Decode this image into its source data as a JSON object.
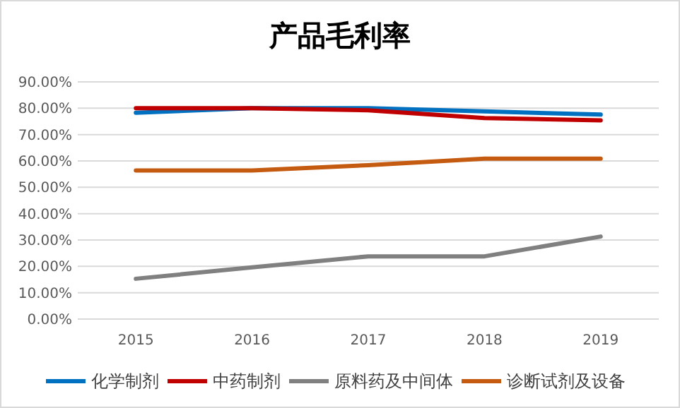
{
  "chart_data": {
    "type": "line",
    "title": "产品毛利率",
    "categories": [
      "2015",
      "2016",
      "2017",
      "2018",
      "2019"
    ],
    "series": [
      {
        "name": "化学制剂",
        "color": "#0070c0",
        "values": [
          78.3,
          80,
          80,
          78.8,
          77.6
        ]
      },
      {
        "name": "中药制剂",
        "color": "#c00000",
        "values": [
          80,
          80,
          79.2,
          76.3,
          75.4
        ]
      },
      {
        "name": "原料药及中间体",
        "color": "#808080",
        "values": [
          15.3,
          19.6,
          23.8,
          23.8,
          31.3
        ]
      },
      {
        "name": "诊断试剂及设备",
        "color": "#c55a11",
        "values": [
          56.4,
          56.4,
          58.4,
          60.9,
          60.9
        ]
      }
    ],
    "ylim": [
      0,
      90
    ],
    "yticks": [
      {
        "value": 0,
        "label": "0.00%"
      },
      {
        "value": 10,
        "label": "10.00%"
      },
      {
        "value": 20,
        "label": "20.00%"
      },
      {
        "value": 30,
        "label": "30.00%"
      },
      {
        "value": 40,
        "label": "40.00%"
      },
      {
        "value": 50,
        "label": "50.00%"
      },
      {
        "value": 60,
        "label": "60.00%"
      },
      {
        "value": 70,
        "label": "70.00%"
      },
      {
        "value": 80,
        "label": "80.00%"
      },
      {
        "value": 90,
        "label": "90.00%"
      }
    ],
    "grid": "y",
    "legend": "bottom",
    "marker": "none",
    "line_style": "solid"
  }
}
